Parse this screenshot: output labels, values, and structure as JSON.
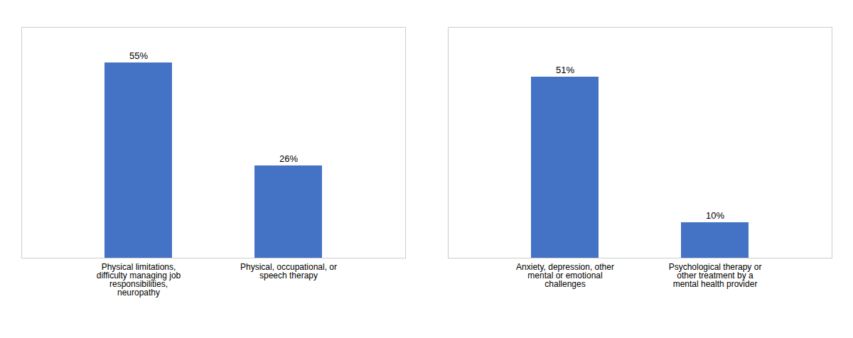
{
  "chart_data": [
    {
      "type": "bar",
      "categories": [
        "Physical limitations,\ndifficulty managing job\nresponsibilities,\nneuropathy",
        "Physical, occupational, or\nspeech therapy"
      ],
      "values": [
        55,
        26
      ],
      "value_labels": [
        "55%",
        "26%"
      ],
      "color": "#4472C4",
      "ylim": [
        0,
        65
      ],
      "data_labels": true,
      "tick_labels": "x"
    },
    {
      "type": "bar",
      "categories": [
        "Anxiety, depression, other\nmental or emotional\nchallenges",
        "Psychological therapy or\nother treatment by a\nmental health provider"
      ],
      "values": [
        51,
        10
      ],
      "value_labels": [
        "51%",
        "10%"
      ],
      "color": "#4472C4",
      "ylim": [
        0,
        65
      ],
      "data_labels": true,
      "tick_labels": "x"
    }
  ]
}
